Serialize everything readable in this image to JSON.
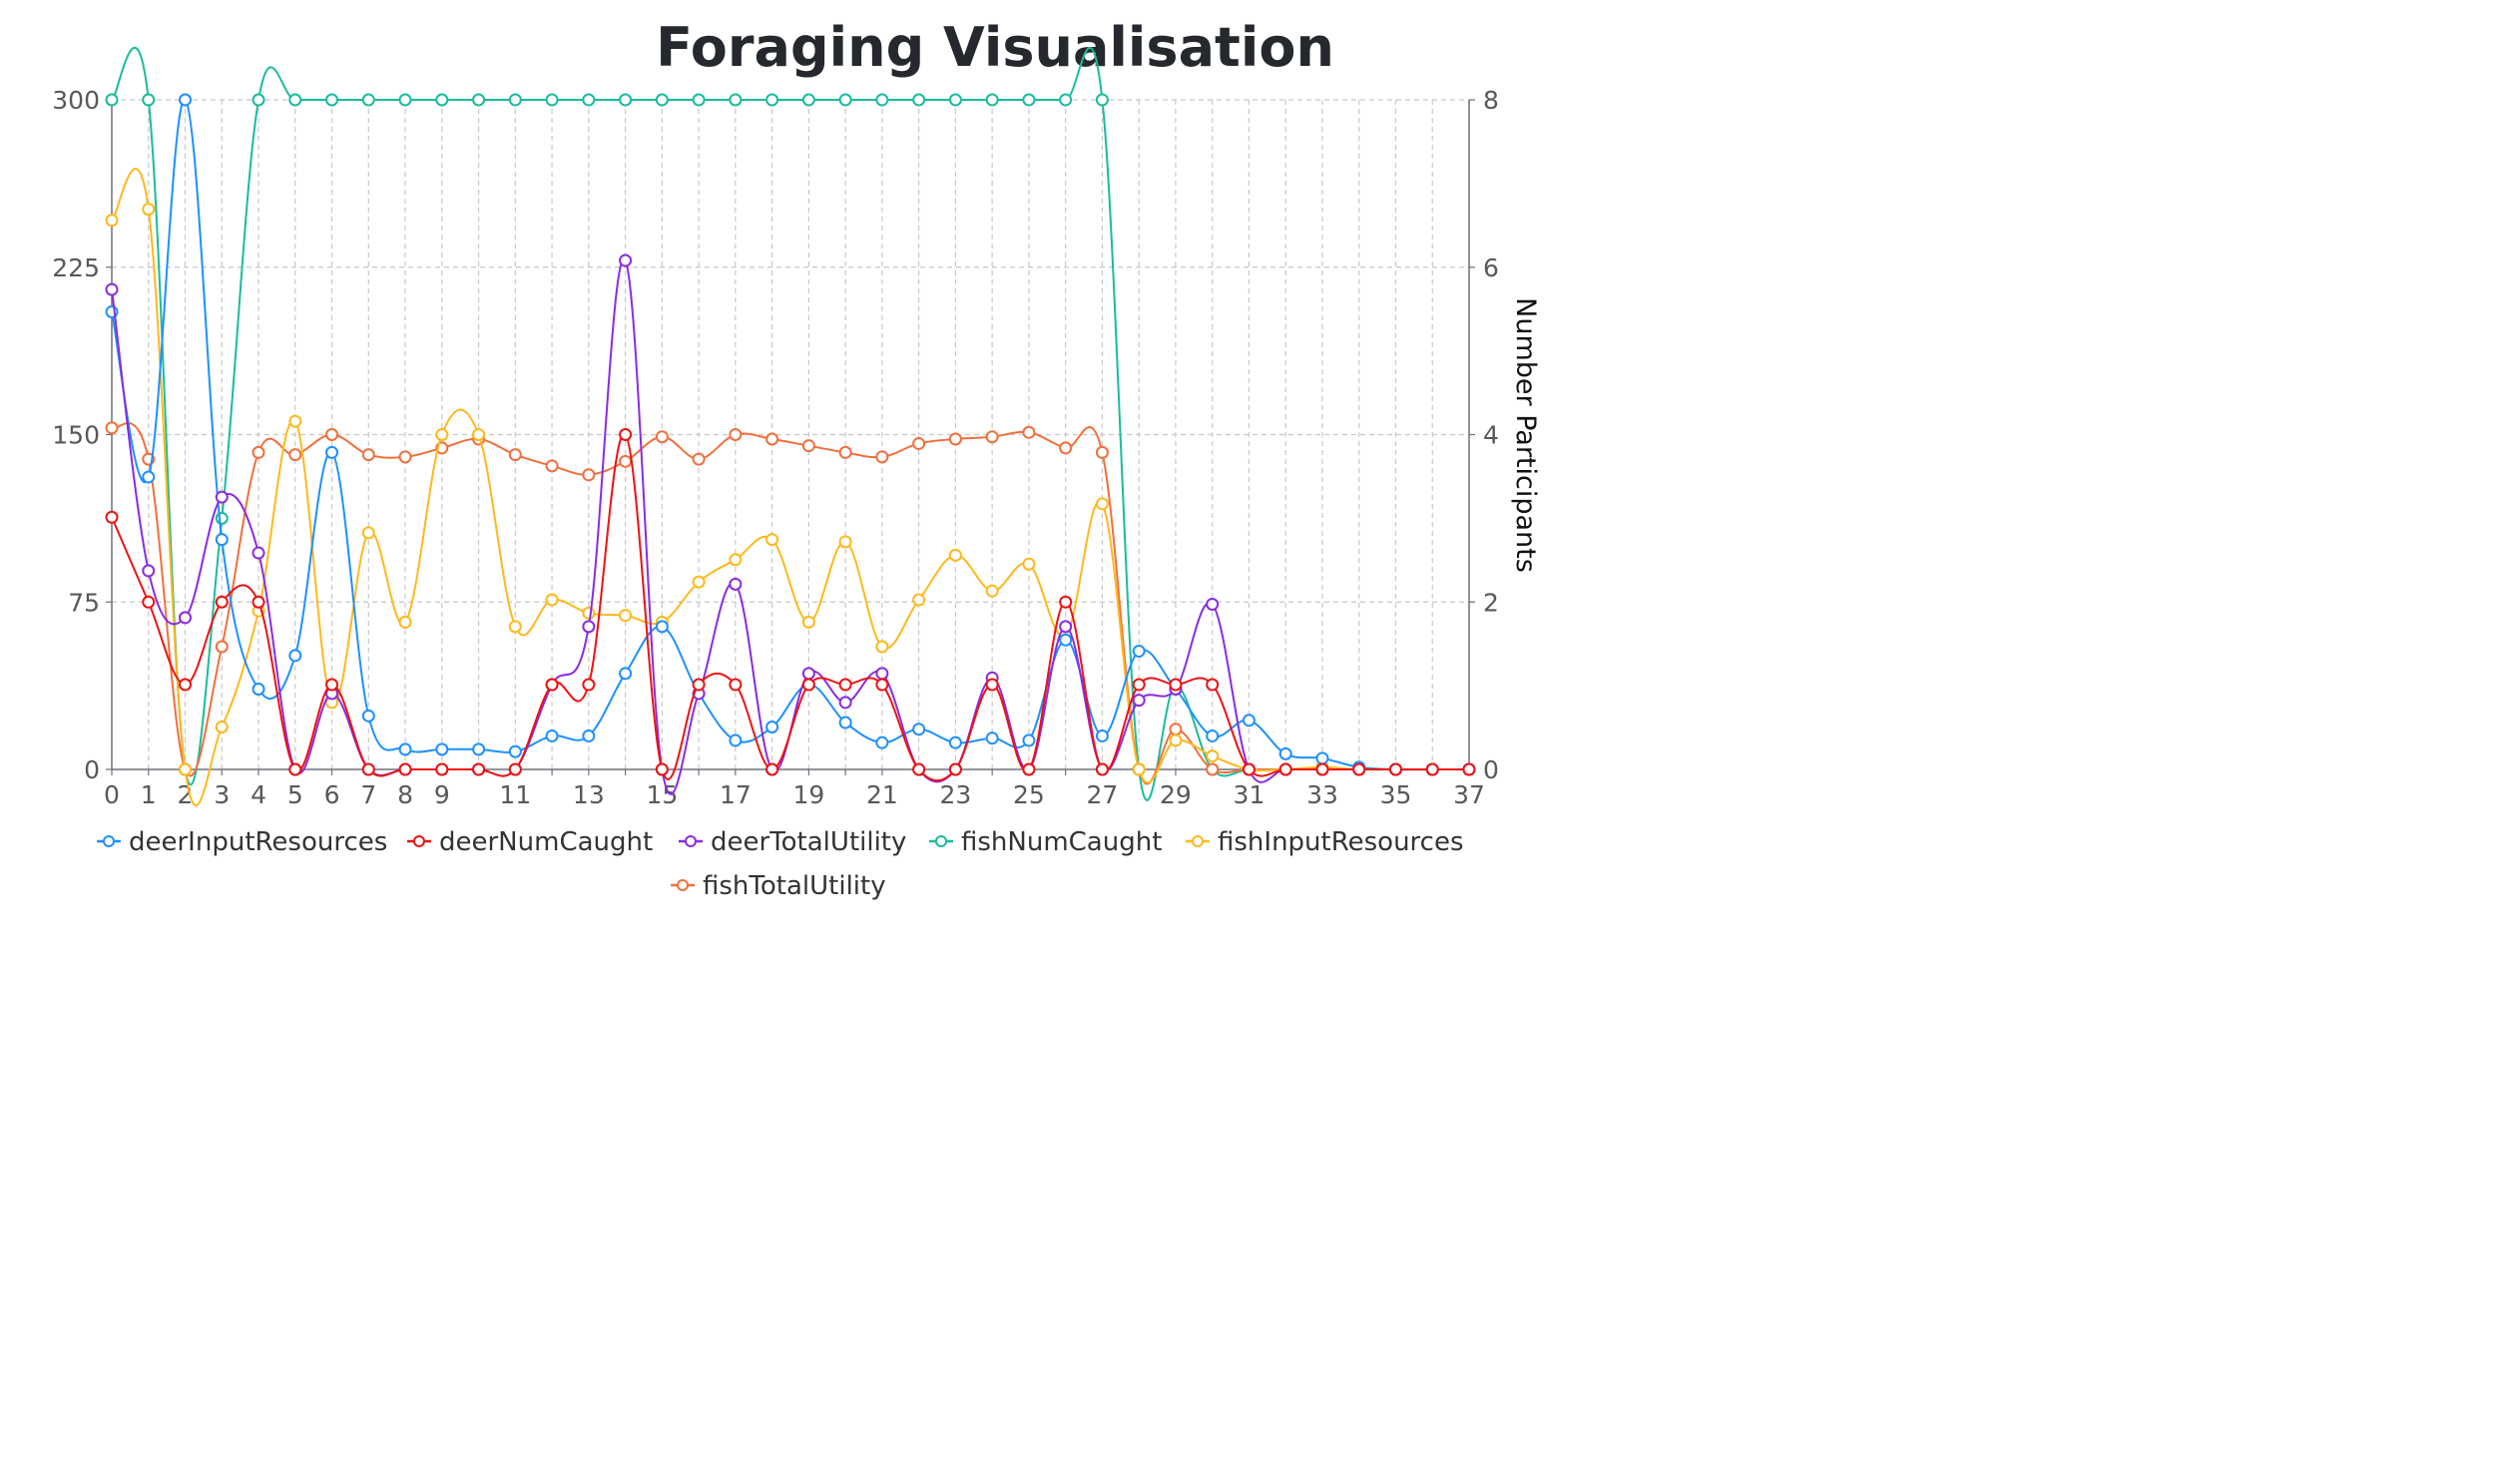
{
  "chart_data": {
    "type": "line",
    "title": "Foraging Visualisation",
    "xlabel": "",
    "ylabel_left": "",
    "ylabel_right": "Number Participants",
    "x": [
      0,
      1,
      2,
      3,
      4,
      5,
      6,
      7,
      8,
      9,
      10,
      11,
      12,
      13,
      14,
      15,
      16,
      17,
      18,
      19,
      20,
      21,
      22,
      23,
      24,
      25,
      26,
      27,
      28,
      29,
      30,
      31,
      32,
      33,
      34,
      35,
      36,
      37
    ],
    "x_tick_labels": [
      "0",
      "1",
      "2",
      "3",
      "4",
      "5",
      "6",
      "7",
      "8",
      "9",
      "11",
      "13",
      "15",
      "17",
      "19",
      "21",
      "23",
      "25",
      "27",
      "29",
      "31",
      "33",
      "35",
      "37"
    ],
    "y_left_ticks": [
      "0",
      "75",
      "150",
      "225",
      "300"
    ],
    "y_left_range": [
      0,
      300
    ],
    "y_right_ticks": [
      "0",
      "2",
      "4",
      "6",
      "8"
    ],
    "y_right_range": [
      0,
      8
    ],
    "grid": true,
    "legend_position": "bottom",
    "series": [
      {
        "name": "deerInputResources",
        "color": "#1e90ff",
        "axis": "left",
        "values": [
          205,
          131,
          300,
          103,
          36,
          51,
          142,
          24,
          9,
          9,
          9,
          8,
          15,
          15,
          43,
          64,
          34,
          13,
          19,
          38,
          21,
          12,
          18,
          12,
          14,
          13,
          58,
          15,
          53,
          36,
          15,
          22,
          7,
          5,
          1,
          0,
          0,
          0
        ]
      },
      {
        "name": "deerNumCaught",
        "color": "#ee1111",
        "axis": "left",
        "values": [
          113,
          75,
          38,
          75,
          75,
          0,
          38,
          0,
          0,
          0,
          0,
          0,
          38,
          38,
          150,
          0,
          38,
          38,
          0,
          38,
          38,
          38,
          0,
          0,
          38,
          0,
          75,
          0,
          38,
          38,
          38,
          0,
          0,
          0,
          0,
          0,
          0,
          0
        ]
      },
      {
        "name": "deerTotalUtility",
        "color": "#8a2be2",
        "axis": "left",
        "values": [
          215,
          89,
          68,
          122,
          97,
          0,
          34,
          0,
          0,
          0,
          0,
          0,
          38,
          64,
          228,
          0,
          34,
          83,
          0,
          43,
          30,
          43,
          0,
          0,
          41,
          0,
          64,
          0,
          31,
          36,
          74,
          0,
          0,
          0,
          0,
          0,
          0,
          0
        ]
      },
      {
        "name": "fishNumCaught",
        "color": "#1abc9c",
        "axis": "right",
        "values": [
          8,
          8,
          0,
          3,
          8,
          8,
          8,
          8,
          8,
          8,
          8,
          8,
          8,
          8,
          8,
          8,
          8,
          8,
          8,
          8,
          8,
          8,
          8,
          8,
          8,
          8,
          8,
          8,
          0,
          1,
          0,
          0,
          0,
          0,
          0,
          0,
          0,
          0
        ]
      },
      {
        "name": "fishInputResources",
        "color": "#ffb81c",
        "axis": "left",
        "values": [
          246,
          251,
          0,
          19,
          71,
          156,
          30,
          106,
          66,
          150,
          150,
          64,
          76,
          70,
          69,
          66,
          84,
          94,
          103,
          66,
          102,
          55,
          76,
          96,
          80,
          92,
          60,
          119,
          0,
          13,
          6,
          0,
          0,
          1,
          0,
          0,
          0,
          0
        ]
      },
      {
        "name": "fishTotalUtility",
        "color": "#f26f3c",
        "axis": "left",
        "values": [
          153,
          139,
          0,
          55,
          142,
          141,
          150,
          141,
          140,
          144,
          148,
          141,
          136,
          132,
          138,
          149,
          139,
          150,
          148,
          145,
          142,
          140,
          146,
          148,
          149,
          151,
          144,
          142,
          0,
          18,
          0,
          0,
          0,
          0,
          0,
          0,
          0,
          0
        ]
      }
    ]
  }
}
